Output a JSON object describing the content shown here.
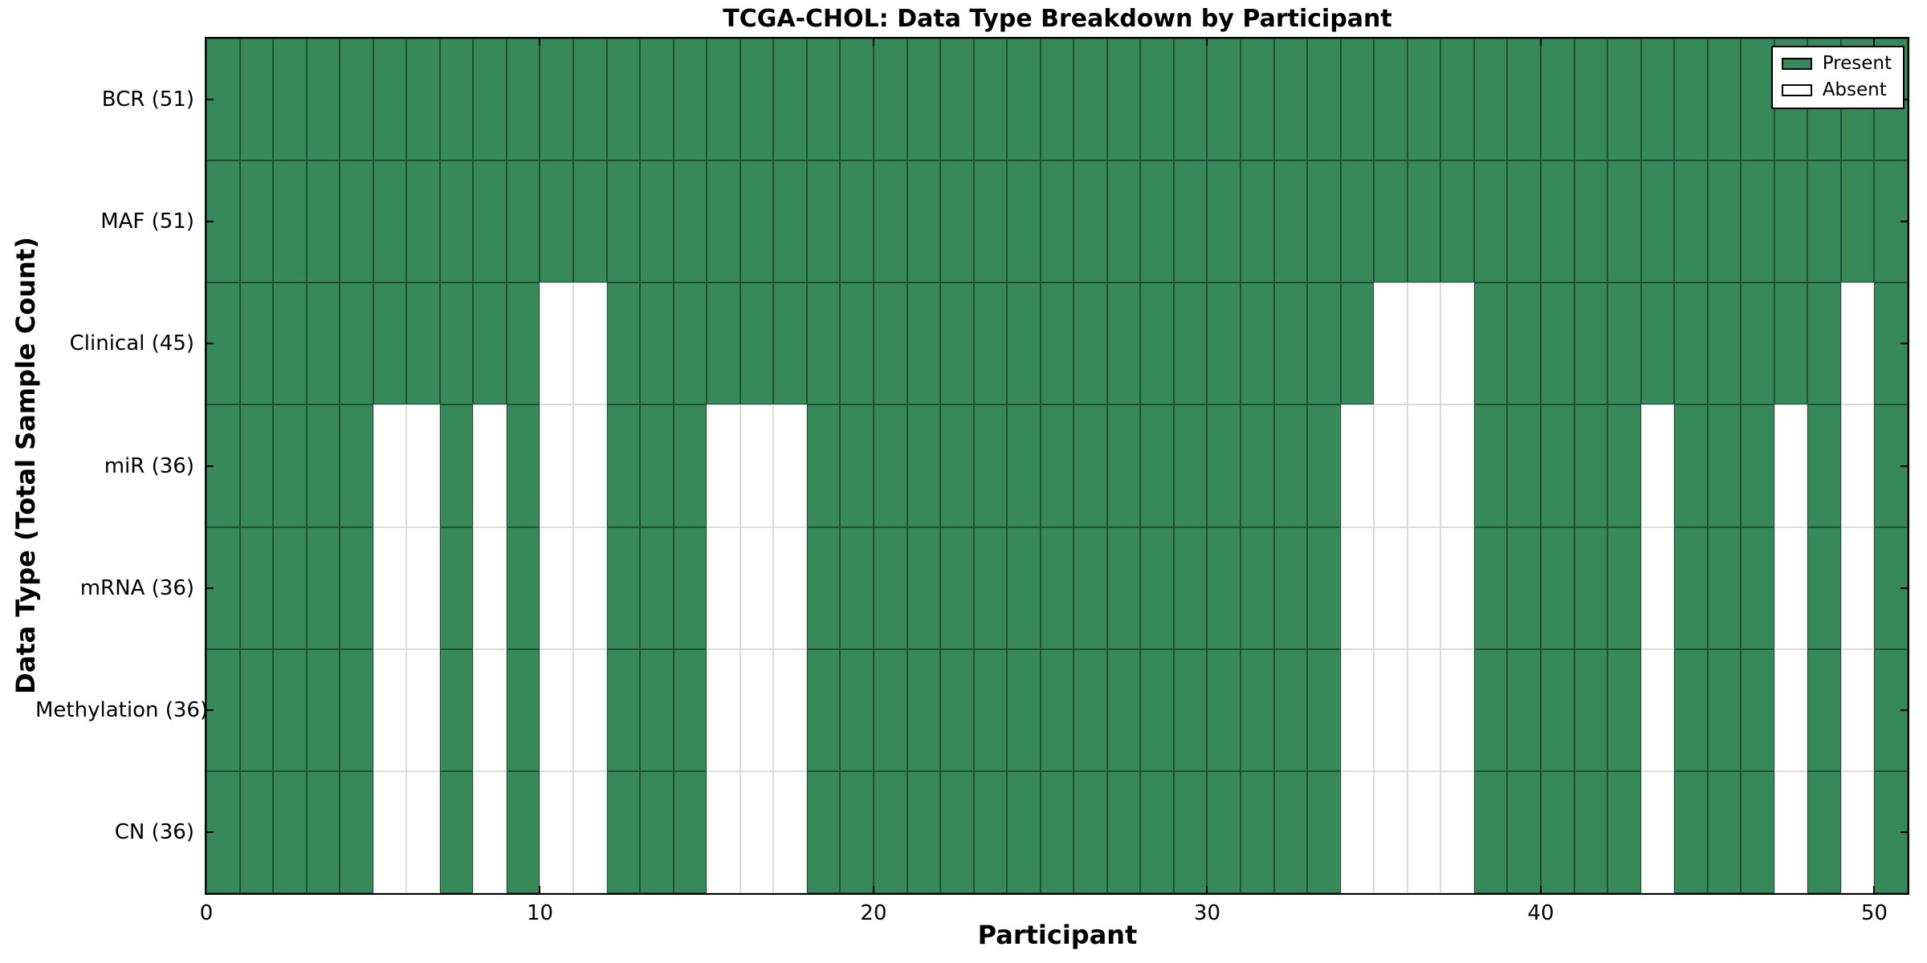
{
  "title": "TCGA-CHOL: Data Type Breakdown by Participant",
  "colors": {
    "present": "#388959",
    "absent": "#ffffff",
    "spine": "#000000",
    "text": "#000000"
  },
  "legend": {
    "present_label": "Present",
    "absent_label": "Absent",
    "position": "upper right"
  },
  "chart_data": {
    "type": "heatmap",
    "title": "TCGA-CHOL: Data Type Breakdown by Participant",
    "xlabel": "Participant",
    "ylabel": "Data Type (Total Sample Count)",
    "n_participants": 51,
    "x_range": [
      0,
      51
    ],
    "x_ticks": [
      0,
      10,
      20,
      30,
      40,
      50
    ],
    "grid": false,
    "legend": [
      "Present",
      "Absent"
    ],
    "legend_position": "upper right",
    "rows": [
      {
        "label": "BCR (51)",
        "data_type": "BCR",
        "total_samples": 51,
        "absent_participants": []
      },
      {
        "label": "MAF (51)",
        "data_type": "MAF",
        "total_samples": 51,
        "absent_participants": []
      },
      {
        "label": "Clinical (45)",
        "data_type": "Clinical",
        "total_samples": 45,
        "absent_participants": [
          10,
          11,
          35,
          36,
          37,
          49
        ]
      },
      {
        "label": "miR (36)",
        "data_type": "miR",
        "total_samples": 36,
        "absent_participants": [
          5,
          6,
          8,
          10,
          11,
          15,
          16,
          17,
          34,
          35,
          36,
          37,
          43,
          47,
          49
        ]
      },
      {
        "label": "mRNA (36)",
        "data_type": "mRNA",
        "total_samples": 36,
        "absent_participants": [
          5,
          6,
          8,
          10,
          11,
          15,
          16,
          17,
          34,
          35,
          36,
          37,
          43,
          47,
          49
        ]
      },
      {
        "label": "Methylation (36)",
        "data_type": "Methylation",
        "total_samples": 36,
        "absent_participants": [
          5,
          6,
          8,
          10,
          11,
          15,
          16,
          17,
          34,
          35,
          36,
          37,
          43,
          47,
          49
        ]
      },
      {
        "label": "CN (36)",
        "data_type": "CN",
        "total_samples": 36,
        "absent_participants": [
          5,
          6,
          8,
          10,
          11,
          15,
          16,
          17,
          34,
          35,
          36,
          37,
          43,
          47,
          49
        ]
      }
    ]
  }
}
